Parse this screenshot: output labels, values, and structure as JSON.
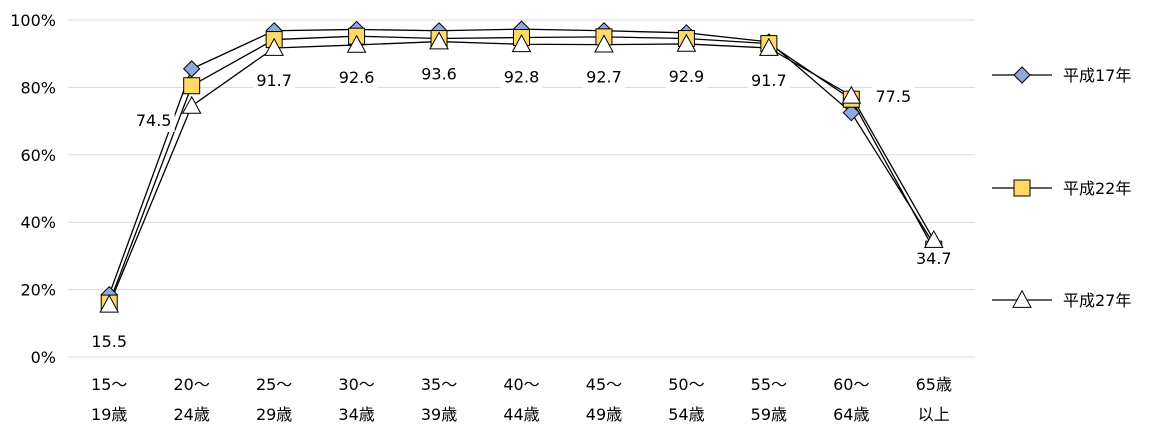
{
  "chart_data": {
    "type": "line",
    "categories": [
      [
        "15～",
        "19歳"
      ],
      [
        "20～",
        "24歳"
      ],
      [
        "25～",
        "29歳"
      ],
      [
        "30～",
        "34歳"
      ],
      [
        "35～",
        "39歳"
      ],
      [
        "40～",
        "44歳"
      ],
      [
        "45～",
        "49歳"
      ],
      [
        "50～",
        "54歳"
      ],
      [
        "55～",
        "59歳"
      ],
      [
        "60～",
        "64歳"
      ],
      [
        "65歳",
        "以上"
      ]
    ],
    "ylim": [
      0,
      100
    ],
    "yticks": [
      0,
      20,
      40,
      60,
      80,
      100
    ],
    "ytick_labels": [
      "0%",
      "20%",
      "40%",
      "60%",
      "80%",
      "100%"
    ],
    "grid": true,
    "legend_position": "right",
    "series": [
      {
        "name": "平成17年",
        "marker": "diamond",
        "color": "#8EA9DB",
        "values": [
          18.5,
          85.5,
          96.8,
          97.2,
          96.8,
          97.3,
          96.8,
          96.2,
          93.5,
          72.5,
          33.5
        ]
      },
      {
        "name": "平成22年",
        "marker": "square",
        "color": "#FFD966",
        "values": [
          16.0,
          80.5,
          94.2,
          95.2,
          94.5,
          94.8,
          95.0,
          94.5,
          93.0,
          76.5,
          32.0
        ]
      },
      {
        "name": "平成27年",
        "marker": "triangle",
        "color": "#FFFFFF",
        "values": [
          15.5,
          74.5,
          91.7,
          92.6,
          93.6,
          92.8,
          92.7,
          92.9,
          91.7,
          77.5,
          34.7
        ]
      }
    ],
    "data_labels": [
      "15.5",
      "74.5",
      "91.7",
      "92.6",
      "93.6",
      "92.8",
      "92.7",
      "92.9",
      "91.7",
      "77.5",
      "34.7"
    ]
  }
}
